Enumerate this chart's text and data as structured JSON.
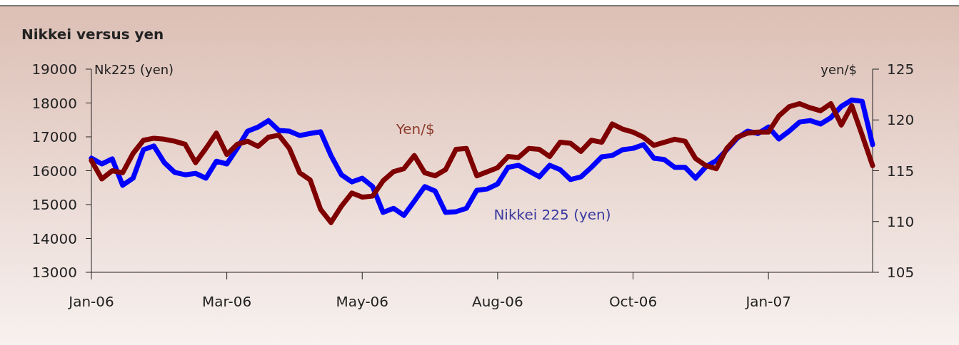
{
  "chart_data": {
    "type": "line",
    "title": "Nikkei versus yen",
    "ylabel": "Nk225 (yen)",
    "y2label": "yen/$",
    "categories": [
      "Jan-06",
      null,
      null,
      null,
      null,
      null,
      null,
      null,
      null,
      null,
      null,
      null,
      null,
      "Mar-06",
      null,
      null,
      null,
      null,
      null,
      null,
      null,
      null,
      null,
      null,
      null,
      null,
      "May-06",
      null,
      null,
      null,
      null,
      null,
      null,
      null,
      null,
      null,
      null,
      null,
      null,
      "Aug-06",
      null,
      null,
      null,
      null,
      null,
      null,
      null,
      null,
      null,
      null,
      null,
      null,
      "Oct-06",
      null,
      null,
      null,
      null,
      null,
      null,
      null,
      null,
      null,
      null,
      null,
      null,
      "Jan-07",
      null,
      null,
      null,
      null,
      null,
      null,
      null,
      null,
      null,
      null
    ],
    "ylim": [
      13000,
      19000
    ],
    "yticks": [
      13000,
      14000,
      15000,
      16000,
      17000,
      18000,
      19000
    ],
    "y2lim": [
      105,
      125
    ],
    "y2ticks": [
      105,
      110,
      115,
      120,
      125
    ],
    "grid": false,
    "marker": "none",
    "line_style": "solid",
    "series": [
      {
        "name": "Nikkei 225 (yen)",
        "color": "#0000ff",
        "values": [
          16370,
          16200,
          16350,
          15570,
          15780,
          16620,
          16730,
          16240,
          15950,
          15880,
          15920,
          15780,
          16280,
          16200,
          16660,
          17170,
          17290,
          17480,
          17190,
          17170,
          17040,
          17100,
          17150,
          16450,
          15880,
          15670,
          15780,
          15530,
          14770,
          14890,
          14680,
          15100,
          15530,
          15400,
          14770,
          14790,
          14890,
          15420,
          15460,
          15610,
          16100,
          16160,
          15990,
          15820,
          16160,
          16030,
          15740,
          15820,
          16100,
          16410,
          16450,
          16620,
          16660,
          16770,
          16370,
          16330,
          16100,
          16100,
          15780,
          16120,
          16300,
          16620,
          16960,
          17170,
          17100,
          17290,
          16940,
          17170,
          17440,
          17480,
          17380,
          17570,
          17900,
          18090,
          18050,
          16770
        ]
      },
      {
        "name": "Yen/$",
        "color": "#7f0000",
        "axis": "y2",
        "values": [
          116.0,
          114.2,
          115.0,
          114.8,
          116.7,
          118.0,
          118.2,
          118.1,
          117.9,
          117.6,
          115.8,
          117.2,
          118.7,
          116.6,
          117.6,
          117.9,
          117.4,
          118.3,
          118.5,
          117.2,
          114.8,
          114.1,
          111.2,
          109.9,
          111.5,
          112.8,
          112.4,
          112.5,
          114.0,
          114.9,
          115.2,
          116.5,
          114.8,
          114.5,
          115.1,
          117.1,
          117.2,
          114.5,
          114.9,
          115.3,
          116.4,
          116.3,
          117.2,
          117.1,
          116.4,
          117.8,
          117.7,
          116.9,
          118.0,
          117.8,
          119.6,
          119.1,
          118.8,
          118.3,
          117.5,
          117.8,
          118.1,
          117.9,
          116.2,
          115.5,
          115.2,
          117.2,
          118.3,
          118.7,
          118.8,
          118.8,
          120.4,
          121.3,
          121.6,
          121.2,
          120.9,
          121.6,
          119.5,
          121.4,
          118.5,
          115.5
        ]
      }
    ]
  }
}
